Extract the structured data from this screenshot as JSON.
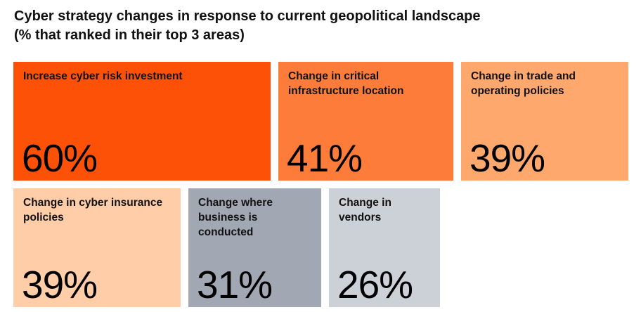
{
  "chart_data": {
    "type": "treemap",
    "title_line1": "Cyber strategy changes in response to current geopolitical landscape",
    "title_line2": "(% that ranked in their top 3 areas)",
    "categories": [
      "Increase cyber risk investment",
      "Change in critical infrastructure location",
      "Change in trade and operating policies",
      "Change in cyber insurance policies",
      "Change where business is conducted",
      "Change in vendors"
    ],
    "values": [
      60,
      41,
      39,
      39,
      31,
      26
    ],
    "value_labels": [
      "60%",
      "41%",
      "39%",
      "39%",
      "31%",
      "26%"
    ],
    "colors": [
      "#fd5108",
      "#fe7c39",
      "#ffa86e",
      "#ffcda8",
      "#a1a8b3",
      "#cbd1d6"
    ]
  }
}
